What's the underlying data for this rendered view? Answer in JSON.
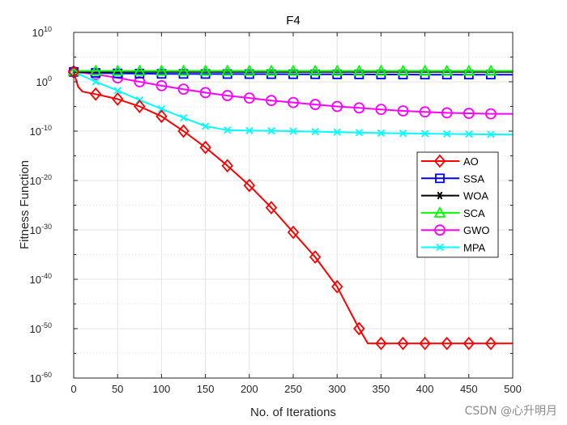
{
  "chart_data": {
    "type": "line",
    "title": "F4",
    "xlabel": "No. of Iterations",
    "ylabel": "Fitness Function",
    "xlim": [
      0,
      500
    ],
    "ylim_log10": [
      -60,
      10
    ],
    "yscale": "log",
    "grid": true,
    "xticks": [
      0,
      50,
      100,
      150,
      200,
      250,
      300,
      350,
      400,
      450,
      500
    ],
    "yticks": [
      {
        "base": "10",
        "exp": "10",
        "value_log10": 10
      },
      {
        "base": "10",
        "exp": "0",
        "value_log10": 0
      },
      {
        "base": "10",
        "exp": "-10",
        "value_log10": -10
      },
      {
        "base": "10",
        "exp": "-20",
        "value_log10": -20
      },
      {
        "base": "10",
        "exp": "-30",
        "value_log10": -30
      },
      {
        "base": "10",
        "exp": "-40",
        "value_log10": -40
      },
      {
        "base": "10",
        "exp": "-50",
        "value_log10": -50
      },
      {
        "base": "10",
        "exp": "-60",
        "value_log10": -60
      }
    ],
    "legend_position": "right",
    "series": [
      {
        "name": "AO",
        "color": "#ff0000",
        "marker": "diamond",
        "x": [
          0,
          5,
          10,
          25,
          50,
          75,
          100,
          125,
          150,
          175,
          200,
          225,
          250,
          275,
          300,
          325,
          335,
          350,
          375,
          400,
          425,
          450,
          475,
          500
        ],
        "log10_y": [
          2,
          -1,
          -2,
          -2.5,
          -3.5,
          -5,
          -7,
          -10,
          -13.3,
          -17,
          -21,
          -25.5,
          -30.5,
          -35.5,
          -41.5,
          -50,
          -53,
          -53,
          -53,
          -53,
          -53,
          -53,
          -53,
          -53
        ],
        "marker_x": [
          0,
          25,
          50,
          75,
          100,
          125,
          150,
          175,
          200,
          225,
          250,
          275,
          300,
          325,
          350,
          375,
          400,
          425,
          450,
          475
        ]
      },
      {
        "name": "SSA",
        "color": "#0000ff",
        "marker": "square",
        "x": [
          0,
          25,
          50,
          100,
          200,
          300,
          400,
          500
        ],
        "log10_y": [
          2,
          1.8,
          1.7,
          1.6,
          1.55,
          1.5,
          1.45,
          1.45
        ],
        "marker_x": [
          0,
          25,
          50,
          75,
          100,
          125,
          150,
          175,
          200,
          225,
          250,
          275,
          300,
          325,
          350,
          375,
          400,
          425,
          450,
          475
        ]
      },
      {
        "name": "WOA",
        "color": "#000000",
        "marker": "asterisk",
        "x": [
          0,
          50,
          100,
          200,
          300,
          400,
          500
        ],
        "log10_y": [
          2,
          2,
          2,
          2,
          2,
          2,
          2
        ],
        "marker_x": []
      },
      {
        "name": "SCA",
        "color": "#00ff00",
        "marker": "triangle",
        "x": [
          0,
          50,
          100,
          200,
          300,
          400,
          500
        ],
        "log10_y": [
          2.2,
          2.2,
          2.2,
          2.2,
          2.2,
          2.2,
          2.2
        ],
        "marker_x": [
          0,
          25,
          50,
          75,
          100,
          125,
          150,
          175,
          200,
          225,
          250,
          275,
          300,
          325,
          350,
          375,
          400,
          425,
          450,
          475
        ]
      },
      {
        "name": "GWO",
        "color": "#ff00ff",
        "marker": "circle",
        "x": [
          0,
          25,
          50,
          75,
          100,
          125,
          150,
          175,
          200,
          225,
          250,
          275,
          300,
          325,
          350,
          375,
          400,
          425,
          450,
          475,
          500
        ],
        "log10_y": [
          2,
          1.5,
          0.8,
          0,
          -0.8,
          -1.5,
          -2.2,
          -2.8,
          -3.3,
          -3.8,
          -4.2,
          -4.6,
          -5,
          -5.3,
          -5.6,
          -5.9,
          -6.1,
          -6.3,
          -6.4,
          -6.5,
          -6.5
        ],
        "marker_x": [
          0,
          25,
          50,
          75,
          100,
          125,
          150,
          175,
          200,
          225,
          250,
          275,
          300,
          325,
          350,
          375,
          400,
          425,
          450,
          475
        ]
      },
      {
        "name": "MPA",
        "color": "#00ffff",
        "marker": "x",
        "x": [
          0,
          25,
          50,
          75,
          100,
          125,
          150,
          175,
          200,
          250,
          300,
          350,
          400,
          450,
          500
        ],
        "log10_y": [
          2,
          0,
          -1.8,
          -3.7,
          -5.5,
          -7.3,
          -9,
          -9.8,
          -9.9,
          -10,
          -10.2,
          -10.4,
          -10.5,
          -10.6,
          -10.7
        ],
        "marker_x": [
          0,
          25,
          50,
          75,
          100,
          125,
          150,
          175,
          200,
          225,
          250,
          275,
          300,
          325,
          350,
          375,
          400,
          425,
          450,
          475
        ]
      }
    ]
  },
  "watermark": "CSDN @心升明月"
}
